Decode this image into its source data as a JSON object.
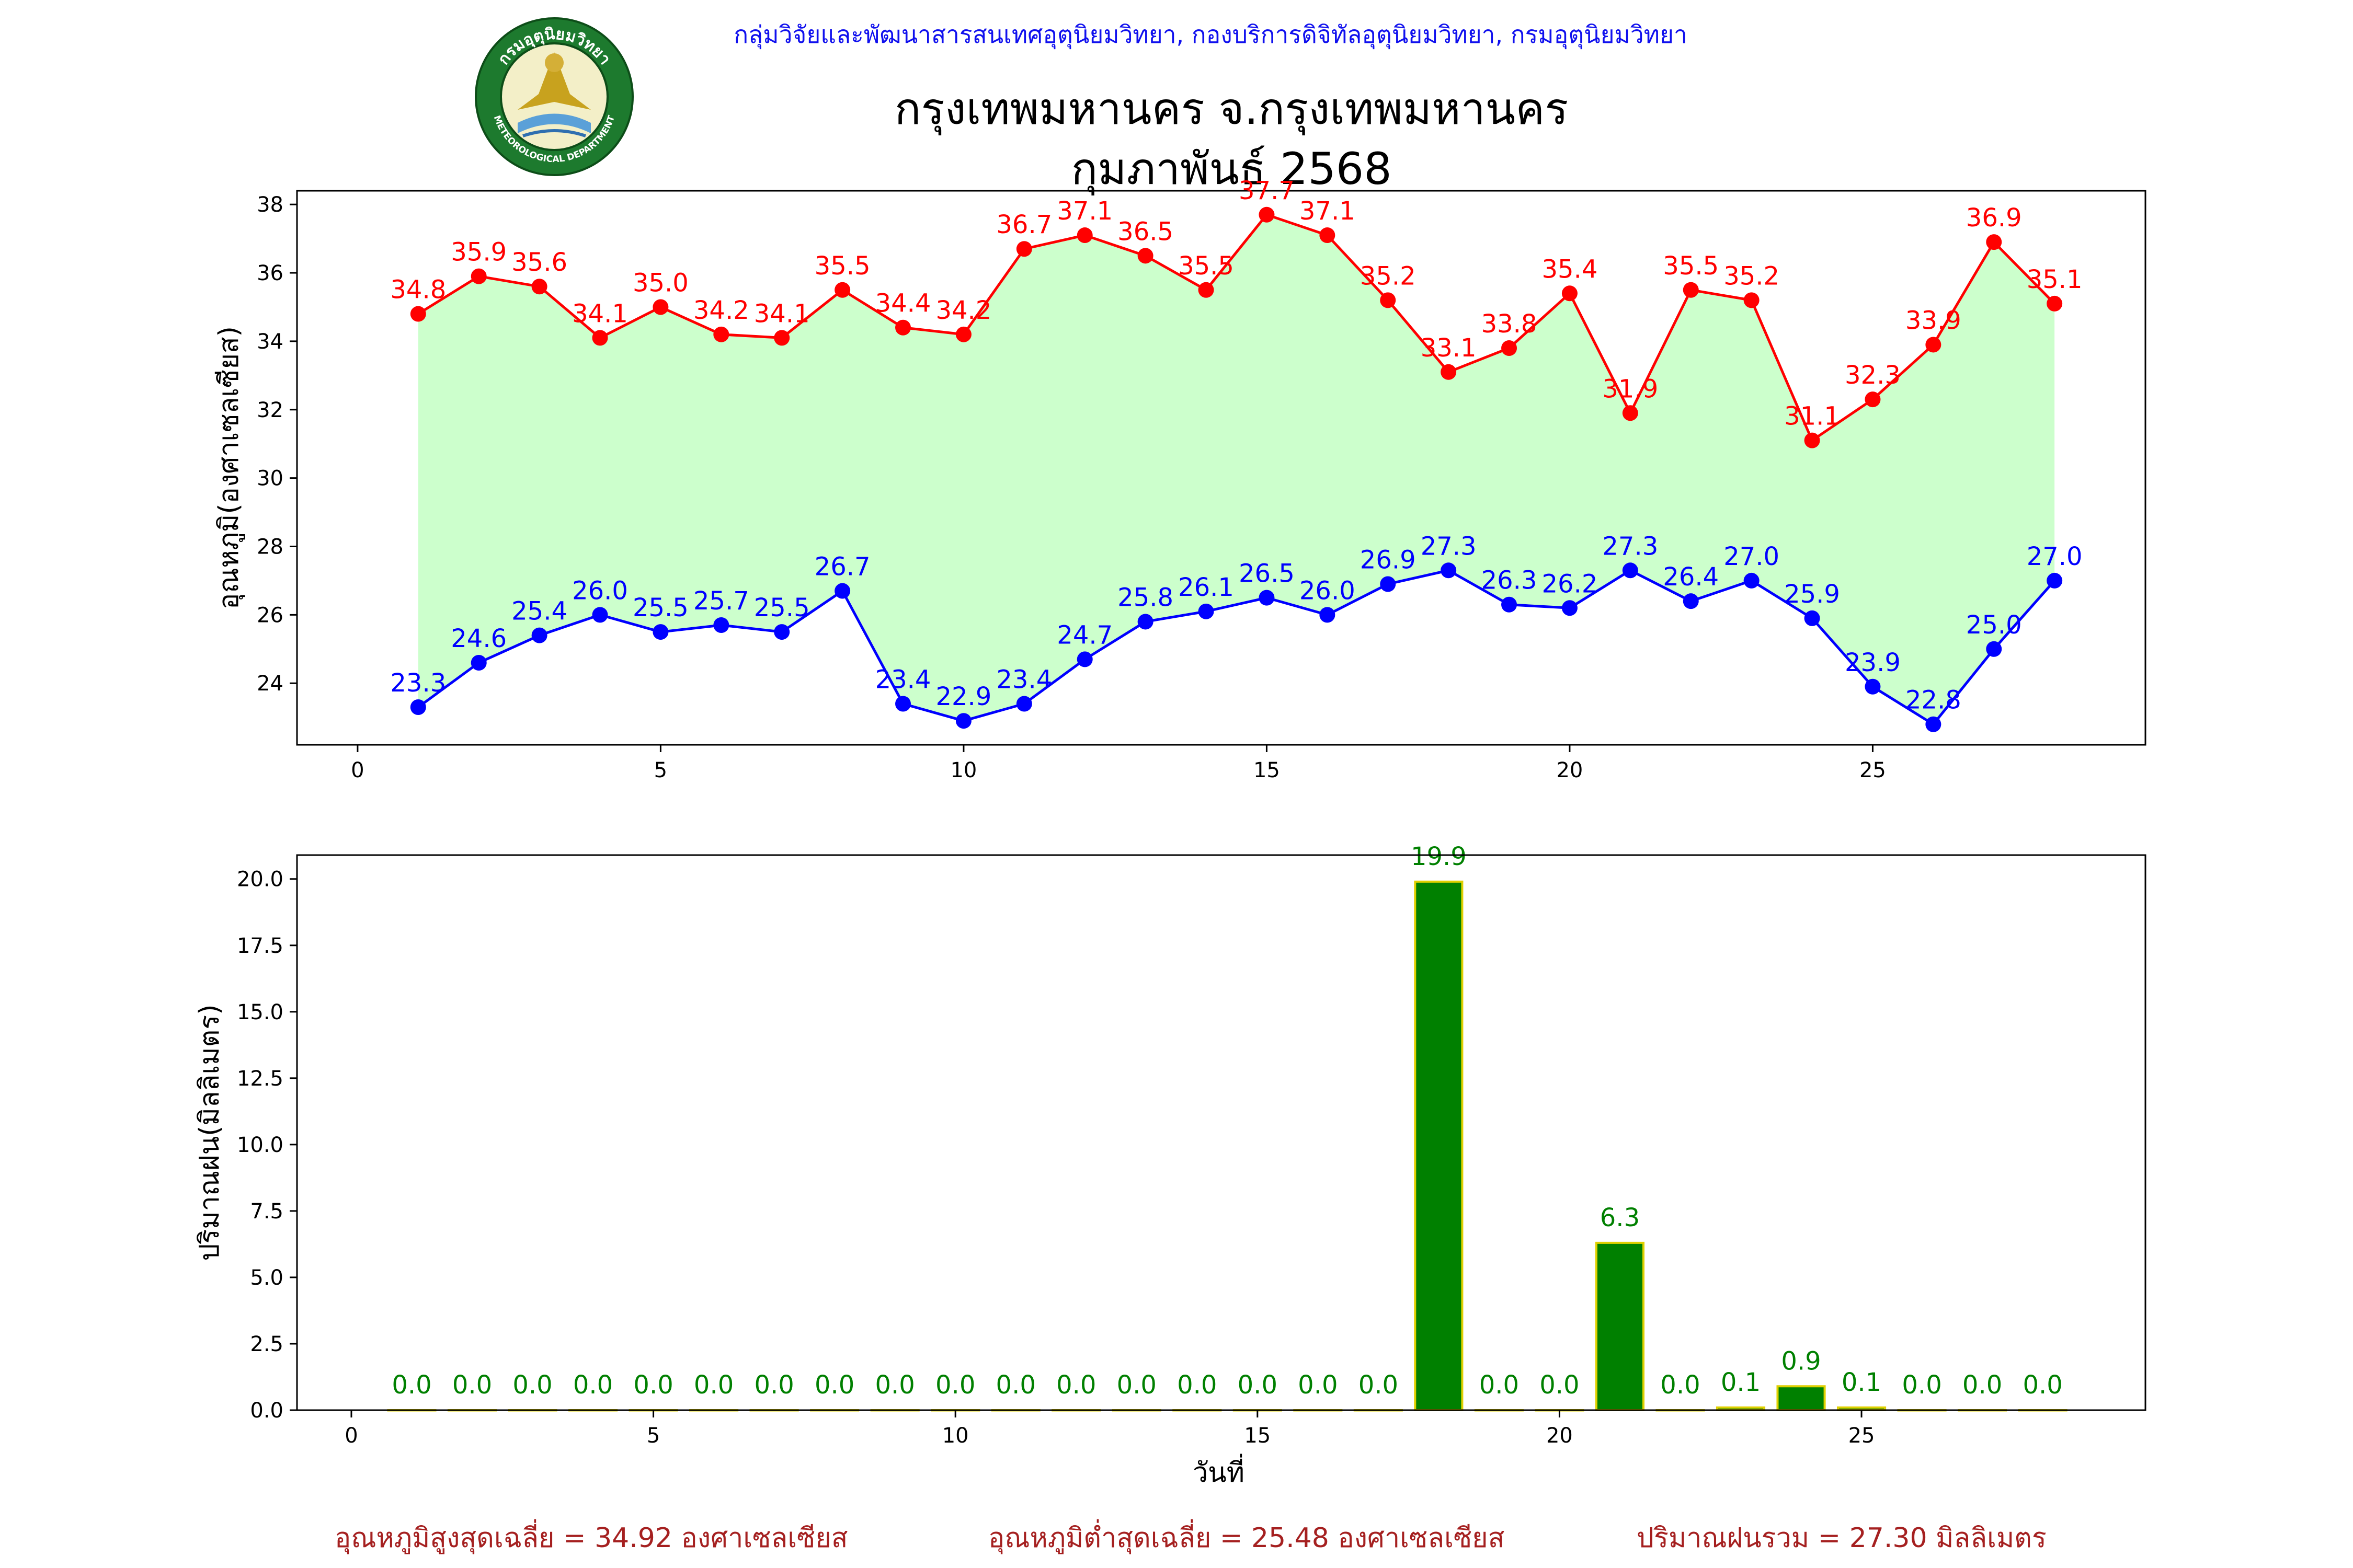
{
  "header": {
    "credit": "กลุ่มวิจัยและพัฒนาสารสนเทศอุตุนิยมวิทยา, กองบริการดิจิทัลอุตุนิยมวิทยา, กรมอุตุนิยมวิทยา",
    "title": "กรุงเทพมหานคร จ.กรุงเทพมหานคร",
    "subtitle": "กุมภาพันธ์ 2568",
    "logo": {
      "icon": "meteorological-department-seal-icon",
      "top_text": "กรมอุตุนิยมวิทยา",
      "bottom_text": "METEOROLOGICAL DEPARTMENT"
    }
  },
  "footer": {
    "avg_max": "อุณหภูมิสูงสุดเฉลี่ย = 34.92 องศาเซลเซียส",
    "avg_min": "อุณหภูมิต่ำสุดเฉลี่ย = 25.48 องศาเซลเซียส",
    "total_rain": "ปริมาณฝนรวม = 27.30 มิลลิเมตร"
  },
  "colors": {
    "max_line": "#ff0000",
    "min_line": "#0000ff",
    "fill": "#ccffcc",
    "rain_bar": "#008000",
    "rain_edge": "#e0d000",
    "credit_text": "#1010ee",
    "footer_text": "#a52020"
  },
  "chart_data": [
    {
      "type": "line",
      "ylabel": "อุณหภูมิ(องศาเซลเซียส)",
      "xlim": [
        -1,
        29.5
      ],
      "ylim": [
        22.2,
        38.4
      ],
      "xticks": [
        0,
        5,
        10,
        15,
        20,
        25
      ],
      "yticks": [
        24,
        26,
        28,
        30,
        32,
        34,
        36,
        38
      ],
      "fill_between": true,
      "x": [
        1,
        2,
        3,
        4,
        5,
        6,
        7,
        8,
        9,
        10,
        11,
        12,
        13,
        14,
        15,
        16,
        17,
        18,
        19,
        20,
        21,
        22,
        23,
        24,
        25,
        26,
        27,
        28
      ],
      "series": [
        {
          "role": "max",
          "values": [
            34.8,
            35.9,
            35.6,
            34.1,
            35.0,
            34.2,
            34.1,
            35.5,
            34.4,
            34.2,
            36.7,
            37.1,
            36.5,
            35.5,
            37.7,
            37.1,
            35.2,
            33.1,
            33.8,
            35.4,
            31.9,
            35.5,
            35.2,
            31.1,
            32.3,
            33.9,
            36.9,
            35.1
          ]
        },
        {
          "role": "min",
          "values": [
            23.3,
            24.6,
            25.4,
            26.0,
            25.5,
            25.7,
            25.5,
            26.7,
            23.4,
            22.9,
            23.4,
            24.7,
            25.8,
            26.1,
            26.5,
            26.0,
            26.9,
            27.3,
            26.3,
            26.2,
            27.3,
            26.4,
            27.0,
            25.9,
            23.9,
            22.8,
            25.0,
            27.0
          ]
        }
      ]
    },
    {
      "type": "bar",
      "ylabel": "ปริมาณฝน(มิลลิเมตร)",
      "xlabel": "วันที่",
      "xlim": [
        -0.9,
        29.7
      ],
      "ylim": [
        0,
        20.9
      ],
      "xticks": [
        0,
        5,
        10,
        15,
        20,
        25
      ],
      "yticks": [
        0.0,
        2.5,
        5.0,
        7.5,
        10.0,
        12.5,
        15.0,
        17.5,
        20.0
      ],
      "x": [
        1,
        2,
        3,
        4,
        5,
        6,
        7,
        8,
        9,
        10,
        11,
        12,
        13,
        14,
        15,
        16,
        17,
        18,
        19,
        20,
        21,
        22,
        23,
        24,
        25,
        26,
        27,
        28
      ],
      "values": [
        0.0,
        0.0,
        0.0,
        0.0,
        0.0,
        0.0,
        0.0,
        0.0,
        0.0,
        0.0,
        0.0,
        0.0,
        0.0,
        0.0,
        0.0,
        0.0,
        0.0,
        19.9,
        0.0,
        0.0,
        6.3,
        0.0,
        0.1,
        0.9,
        0.1,
        0.0,
        0.0,
        0.0
      ]
    }
  ]
}
